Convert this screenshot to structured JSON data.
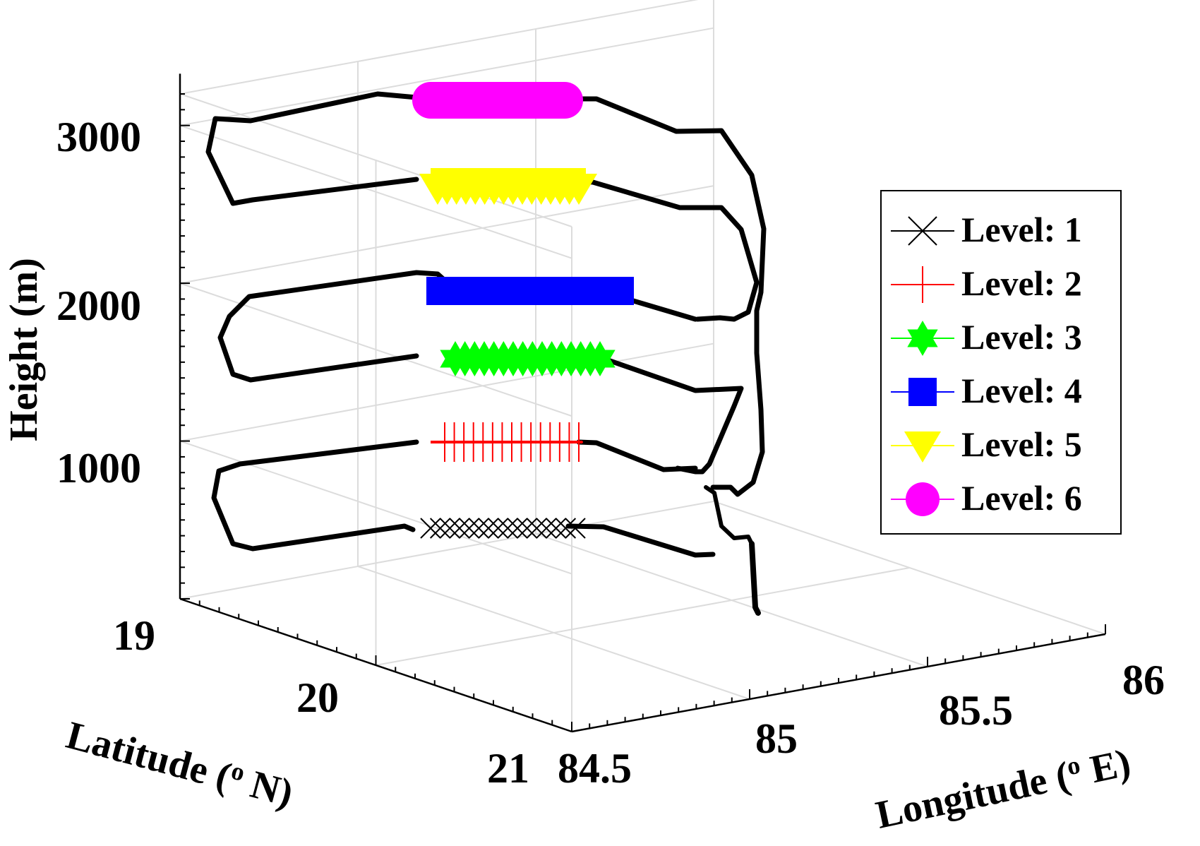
{
  "chart_data": {
    "type": "3d-line",
    "title": "",
    "xlabel": "Longitude (o E)",
    "xlabel_parts": [
      "Longitude (",
      "o",
      " E)"
    ],
    "ylabel": "Latitude (o N)",
    "ylabel_parts": [
      "Latitude (",
      "o",
      " N)"
    ],
    "zlabel": "Height (m)",
    "x_ticks": [
      84.5,
      85,
      85.5,
      86
    ],
    "x_tick_labels": [
      "84.5",
      "85",
      "85.5",
      "86"
    ],
    "y_ticks": [
      19,
      20,
      21
    ],
    "y_tick_labels": [
      "19",
      "20",
      "21"
    ],
    "z_ticks": [
      1000,
      2000,
      3000
    ],
    "z_tick_labels": [
      "1000",
      "2000",
      "3000"
    ],
    "xlim": [
      84.5,
      86
    ],
    "ylim": [
      19,
      21
    ],
    "zlim": [
      0,
      3200
    ],
    "grid": true,
    "legend_position": "right",
    "colors": {
      "track": "#000000"
    },
    "series": [
      {
        "name": "Level: 1",
        "marker": "x",
        "color": "#000000",
        "height": 600
      },
      {
        "name": "Level: 2",
        "marker": "+",
        "color": "#ff0000",
        "height": 1150
      },
      {
        "name": "Level: 3",
        "marker": "hexagram",
        "color": "#00ff00",
        "height": 1650
      },
      {
        "name": "Level: 4",
        "marker": "square",
        "color": "#0000ff",
        "height": 2100
      },
      {
        "name": "Level: 5",
        "marker": "triangle-down",
        "color": "#ffff00",
        "height": 2650
      },
      {
        "name": "Level: 6",
        "marker": "circle",
        "color": "#ff00ff",
        "height": 3150
      }
    ]
  }
}
